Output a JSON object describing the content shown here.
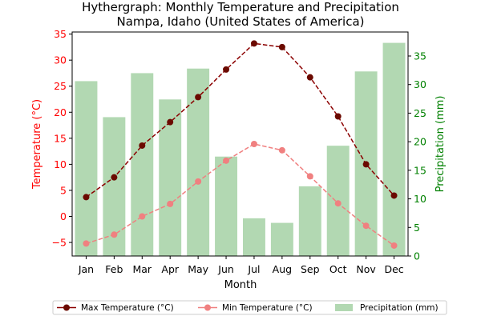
{
  "chart_data": {
    "type": "combo",
    "title_line1": "Hythergraph: Monthly Temperature and Precipitation",
    "title_line2": "Nampa, Idaho (United States of America)",
    "xlabel": "Month",
    "ylabel_left": "Temperature (°C)",
    "ylabel_right": "Precipitation (mm)",
    "categories": [
      "Jan",
      "Feb",
      "Mar",
      "Apr",
      "May",
      "Jun",
      "Jul",
      "Aug",
      "Sep",
      "Oct",
      "Nov",
      "Dec"
    ],
    "ylim_left": [
      -7.6,
      35.4
    ],
    "ylim_right": [
      0,
      39.2
    ],
    "yticks_left": [
      -5,
      0,
      5,
      10,
      15,
      20,
      25,
      30,
      35
    ],
    "yticks_right": [
      0,
      5,
      10,
      15,
      20,
      25,
      30,
      35
    ],
    "series": [
      {
        "name": "Max Temperature (°C)",
        "kind": "line",
        "axis": "left",
        "color": "#8b0000",
        "marker_color": "#6b0a00",
        "style": "dashed",
        "values": [
          3.7,
          7.5,
          13.6,
          18.1,
          22.9,
          28.2,
          33.2,
          32.5,
          26.7,
          19.2,
          10.0,
          4.0
        ]
      },
      {
        "name": "Min Temperature (°C)",
        "kind": "line",
        "axis": "left",
        "color": "#f08080",
        "marker_color": "#f08080",
        "style": "dashed",
        "values": [
          -5.2,
          -3.5,
          0.0,
          2.4,
          6.7,
          10.7,
          13.9,
          12.7,
          7.7,
          2.5,
          -1.8,
          -5.6
        ]
      },
      {
        "name": "Precipitation (mm)",
        "kind": "bar",
        "axis": "right",
        "color": "#b2d8b2",
        "values": [
          30.6,
          24.3,
          32.0,
          27.4,
          32.8,
          17.4,
          6.6,
          5.8,
          12.2,
          19.3,
          32.3,
          37.3
        ]
      }
    ],
    "legend_position": "bottom",
    "left_axis_color": "#ff0000",
    "right_axis_color": "#008000"
  }
}
